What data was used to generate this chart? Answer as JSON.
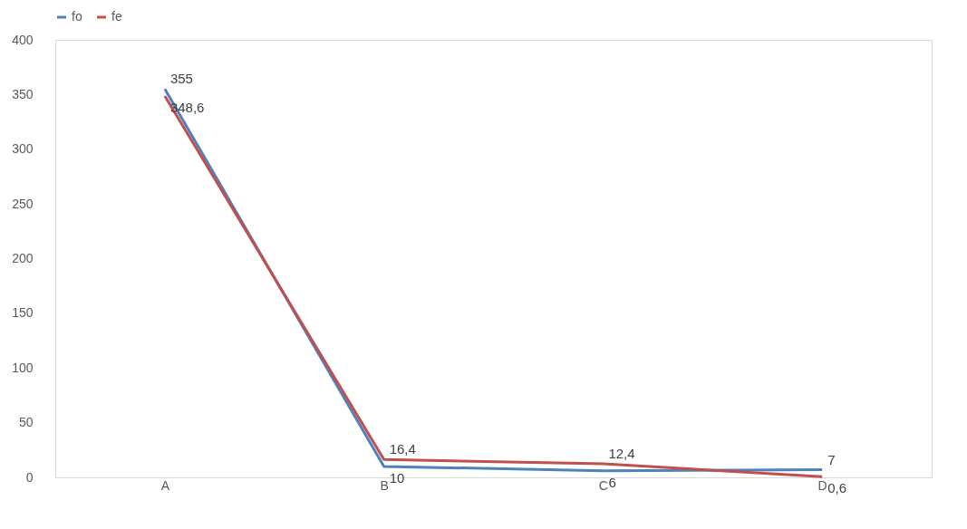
{
  "chart_data": {
    "type": "line",
    "categories": [
      "A",
      "B",
      "C",
      "D"
    ],
    "series": [
      {
        "name": "fo",
        "color": "#4f81bd",
        "values": [
          355,
          10,
          6,
          7
        ],
        "value_labels": [
          "355",
          "10",
          "6",
          "7"
        ]
      },
      {
        "name": "fe",
        "color": "#c0504d",
        "values": [
          348.6,
          16.4,
          12.4,
          0.6
        ],
        "value_labels": [
          "348,6",
          "16,4",
          "12,4",
          "0,6"
        ]
      }
    ],
    "ylim": [
      0,
      400
    ],
    "yticks": [
      0,
      50,
      100,
      150,
      200,
      250,
      300,
      350,
      400
    ],
    "grid": false,
    "legend": "top",
    "marker": "none",
    "line_style": "solid"
  }
}
